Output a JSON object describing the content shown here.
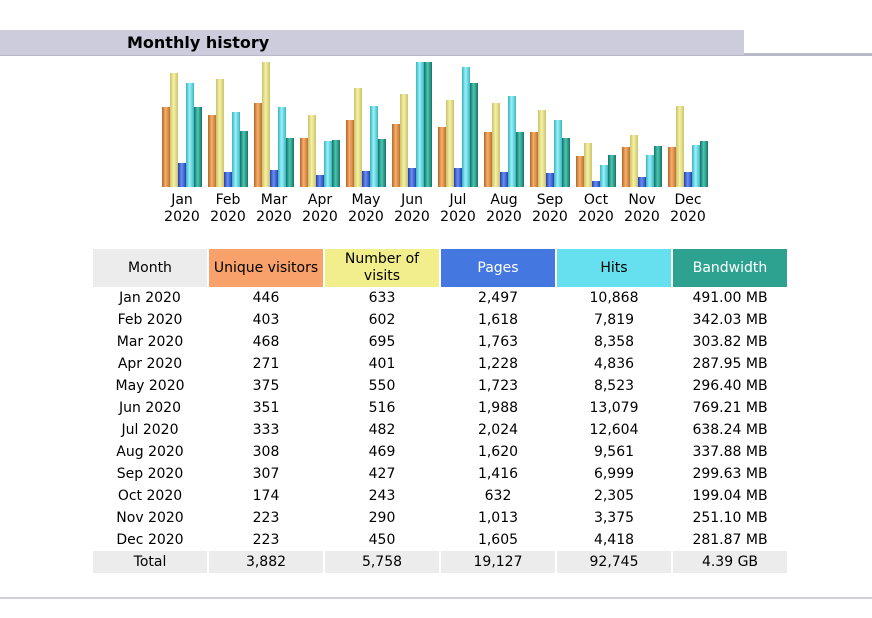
{
  "page": {
    "title": "Monthly history"
  },
  "colors": {
    "unique_visitors": "#f9a16a",
    "number_of_visits": "#f1ee8b",
    "pages": "#4577e0",
    "hits": "#66dfee",
    "bandwidth": "#2ea291",
    "month_header": "#ececec"
  },
  "chart_data": {
    "type": "bar",
    "categories": [
      "Jan 2020",
      "Feb 2020",
      "Mar 2020",
      "Apr 2020",
      "May 2020",
      "Jun 2020",
      "Jul 2020",
      "Aug 2020",
      "Sep 2020",
      "Oct 2020",
      "Nov 2020",
      "Dec 2020"
    ],
    "category_lines": [
      [
        "Jan",
        "2020"
      ],
      [
        "Feb",
        "2020"
      ],
      [
        "Mar",
        "2020"
      ],
      [
        "Apr",
        "2020"
      ],
      [
        "May",
        "2020"
      ],
      [
        "Jun",
        "2020"
      ],
      [
        "Jul",
        "2020"
      ],
      [
        "Aug",
        "2020"
      ],
      [
        "Sep",
        "2020"
      ],
      [
        "Oct",
        "2020"
      ],
      [
        "Nov",
        "2020"
      ],
      [
        "Dec",
        "2020"
      ]
    ],
    "series": [
      {
        "key": "unique_visitors",
        "values": [
          446,
          403,
          468,
          271,
          375,
          351,
          333,
          308,
          307,
          174,
          223,
          223
        ]
      },
      {
        "key": "number_of_visits",
        "values": [
          633,
          602,
          695,
          401,
          550,
          516,
          482,
          469,
          427,
          243,
          290,
          450
        ]
      },
      {
        "key": "pages",
        "values": [
          2497,
          1618,
          1763,
          1228,
          1723,
          1988,
          2024,
          1620,
          1416,
          632,
          1013,
          1605
        ]
      },
      {
        "key": "hits",
        "values": [
          10868,
          7819,
          8358,
          4836,
          8523,
          13079,
          12604,
          9561,
          6999,
          2305,
          3375,
          4418
        ]
      },
      {
        "key": "bandwidth_mb",
        "values": [
          491.0,
          342.03,
          303.82,
          287.95,
          296.4,
          769.21,
          638.24,
          337.88,
          299.63,
          199.04,
          251.1,
          281.87
        ]
      }
    ],
    "legend": "none",
    "grid": false
  },
  "table": {
    "headers": {
      "month": "Month",
      "unique_visitors": "Unique visitors",
      "number_of_visits": "Number of visits",
      "pages": "Pages",
      "hits": "Hits",
      "bandwidth": "Bandwidth"
    },
    "rows": [
      {
        "month": "Jan 2020",
        "unique": "446",
        "visits": "633",
        "pages": "2,497",
        "hits": "10,868",
        "bandwidth": "491.00 MB"
      },
      {
        "month": "Feb 2020",
        "unique": "403",
        "visits": "602",
        "pages": "1,618",
        "hits": "7,819",
        "bandwidth": "342.03 MB"
      },
      {
        "month": "Mar 2020",
        "unique": "468",
        "visits": "695",
        "pages": "1,763",
        "hits": "8,358",
        "bandwidth": "303.82 MB"
      },
      {
        "month": "Apr 2020",
        "unique": "271",
        "visits": "401",
        "pages": "1,228",
        "hits": "4,836",
        "bandwidth": "287.95 MB"
      },
      {
        "month": "May 2020",
        "unique": "375",
        "visits": "550",
        "pages": "1,723",
        "hits": "8,523",
        "bandwidth": "296.40 MB"
      },
      {
        "month": "Jun 2020",
        "unique": "351",
        "visits": "516",
        "pages": "1,988",
        "hits": "13,079",
        "bandwidth": "769.21 MB"
      },
      {
        "month": "Jul 2020",
        "unique": "333",
        "visits": "482",
        "pages": "2,024",
        "hits": "12,604",
        "bandwidth": "638.24 MB"
      },
      {
        "month": "Aug 2020",
        "unique": "308",
        "visits": "469",
        "pages": "1,620",
        "hits": "9,561",
        "bandwidth": "337.88 MB"
      },
      {
        "month": "Sep 2020",
        "unique": "307",
        "visits": "427",
        "pages": "1,416",
        "hits": "6,999",
        "bandwidth": "299.63 MB"
      },
      {
        "month": "Oct 2020",
        "unique": "174",
        "visits": "243",
        "pages": "632",
        "hits": "2,305",
        "bandwidth": "199.04 MB"
      },
      {
        "month": "Nov 2020",
        "unique": "223",
        "visits": "290",
        "pages": "1,013",
        "hits": "3,375",
        "bandwidth": "251.10 MB"
      },
      {
        "month": "Dec 2020",
        "unique": "223",
        "visits": "450",
        "pages": "1,605",
        "hits": "4,418",
        "bandwidth": "281.87 MB"
      }
    ],
    "total": {
      "month": "Total",
      "unique": "3,882",
      "visits": "5,758",
      "pages": "19,127",
      "hits": "92,745",
      "bandwidth": "4.39 GB"
    }
  }
}
